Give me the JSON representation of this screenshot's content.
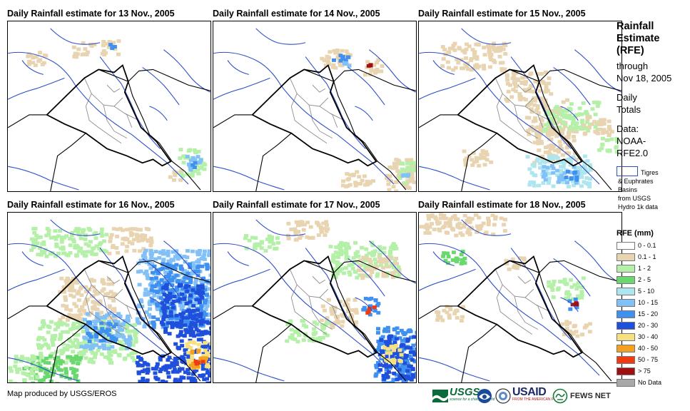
{
  "panels": [
    {
      "title": "Daily Rainfall estimate for 13 Nov., 2005"
    },
    {
      "title": "Daily Rainfall estimate for 14 Nov., 2005"
    },
    {
      "title": "Daily Rainfall estimate for 15 Nov., 2005"
    },
    {
      "title": "Daily Rainfall estimate for 16 Nov., 2005"
    },
    {
      "title": "Daily Rainfall estimate for 17 Nov., 2005"
    },
    {
      "title": "Daily Rainfall estimate for 18 Nov., 2005"
    }
  ],
  "side": {
    "title_lines": [
      "Rainfall",
      "Estimate",
      "(RFE)"
    ],
    "through": "through",
    "through_date": "Nov 18, 2005",
    "daily": "Daily",
    "totals": "Totals",
    "data_label": "Data:",
    "data_src1": "NOAA-",
    "data_src2": "RFE2.0",
    "basin_lines": [
      "Tigres",
      "& Euphrates",
      "Basins",
      "from USGS",
      "Hydro 1k data"
    ]
  },
  "legend": {
    "title": "RFE (mm)",
    "items": [
      {
        "label": "0 - 0.1",
        "color": "#ffffff"
      },
      {
        "label": "0.1 - 1",
        "color": "#e8d4b0"
      },
      {
        "label": "1 - 2",
        "color": "#b4f0a8"
      },
      {
        "label": "2 - 5",
        "color": "#6ad86e"
      },
      {
        "label": "5 - 10",
        "color": "#aee6f0"
      },
      {
        "label": "10 - 15",
        "color": "#82c0f8"
      },
      {
        "label": "15 - 20",
        "color": "#4090f0"
      },
      {
        "label": "20 - 30",
        "color": "#1f50dc"
      },
      {
        "label": "30 - 40",
        "color": "#f6e080"
      },
      {
        "label": "40 - 50",
        "color": "#f6a020"
      },
      {
        "label": "50 - 75",
        "color": "#f03a10"
      },
      {
        "label": "> 75",
        "color": "#a01010"
      },
      {
        "label": "No Data",
        "color": "#a8a8a8"
      }
    ]
  },
  "footer": "Map produced by USGS/EROS",
  "logos": {
    "usgs": "USGS",
    "usgs_tag": "science for a changing world",
    "usaid": "USAID",
    "usaid_tag": "FROM THE AMERICAN PEOPLE",
    "fews": "FEWS NET"
  },
  "colors": {
    "river": "#3050c8",
    "border": "#000000",
    "province": "#8c8c8c"
  }
}
